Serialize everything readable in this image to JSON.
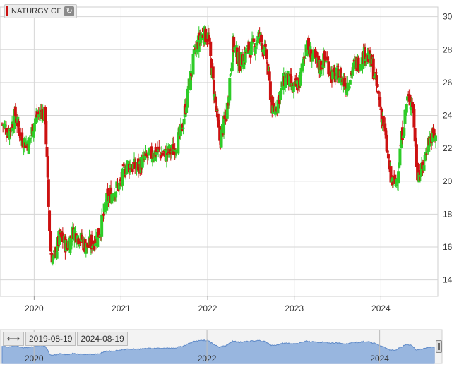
{
  "legend": {
    "label": "NATURGY GF",
    "color": "#cc1111"
  },
  "range_selector": {
    "from": "2019-08-19",
    "to": "2024-08-19"
  },
  "colors": {
    "up": "#2ecc28",
    "down": "#cc1111",
    "grid": "#d6d6d6",
    "navigator_fill": "#8fb0dd",
    "navigator_line": "#4f7fc4"
  },
  "chart_data": {
    "type": "candlestick",
    "title": "",
    "xlabel": "",
    "ylabel": "",
    "x_range": [
      "2019-08-19",
      "2024-08-19"
    ],
    "ylim": [
      13,
      30.5
    ],
    "y_ticks": [
      14,
      16,
      18,
      20,
      22,
      24,
      26,
      28,
      30
    ],
    "x_ticks": [
      "2020",
      "2021",
      "2022",
      "2023",
      "2024"
    ],
    "navigator_ticks": [
      "2020",
      "2022",
      "2024"
    ],
    "grid": true,
    "legend_position": "top-left",
    "weekly_closes": [
      {
        "d": "2019-08-19",
        "c": 23.5
      },
      {
        "d": "2019-09-16",
        "c": 23.0
      },
      {
        "d": "2019-10-14",
        "c": 24.0
      },
      {
        "d": "2019-11-11",
        "c": 22.5
      },
      {
        "d": "2019-12-09",
        "c": 22.3
      },
      {
        "d": "2020-01-06",
        "c": 23.8
      },
      {
        "d": "2020-02-03",
        "c": 24.3
      },
      {
        "d": "2020-02-17",
        "c": 23.8
      },
      {
        "d": "2020-03-09",
        "c": 15.8
      },
      {
        "d": "2020-03-23",
        "c": 15.2
      },
      {
        "d": "2020-04-20",
        "c": 16.7
      },
      {
        "d": "2020-05-18",
        "c": 16.0
      },
      {
        "d": "2020-06-15",
        "c": 17.0
      },
      {
        "d": "2020-07-13",
        "c": 16.5
      },
      {
        "d": "2020-08-10",
        "c": 16.0
      },
      {
        "d": "2020-09-07",
        "c": 16.3
      },
      {
        "d": "2020-10-05",
        "c": 17.0
      },
      {
        "d": "2020-11-02",
        "c": 18.8
      },
      {
        "d": "2020-11-30",
        "c": 19.4
      },
      {
        "d": "2020-12-28",
        "c": 19.8
      },
      {
        "d": "2021-01-25",
        "c": 21.0
      },
      {
        "d": "2021-03-08",
        "c": 20.8
      },
      {
        "d": "2021-04-19",
        "c": 21.4
      },
      {
        "d": "2021-05-31",
        "c": 21.8
      },
      {
        "d": "2021-07-05",
        "c": 21.6
      },
      {
        "d": "2021-08-09",
        "c": 21.9
      },
      {
        "d": "2021-09-13",
        "c": 23.0
      },
      {
        "d": "2021-10-11",
        "c": 25.5
      },
      {
        "d": "2021-11-08",
        "c": 27.8
      },
      {
        "d": "2021-12-06",
        "c": 29.0
      },
      {
        "d": "2022-01-03",
        "c": 28.8
      },
      {
        "d": "2022-01-24",
        "c": 26.0
      },
      {
        "d": "2022-02-21",
        "c": 22.5
      },
      {
        "d": "2022-03-21",
        "c": 24.0
      },
      {
        "d": "2022-04-18",
        "c": 28.3
      },
      {
        "d": "2022-05-16",
        "c": 27.2
      },
      {
        "d": "2022-06-13",
        "c": 27.8
      },
      {
        "d": "2022-07-11",
        "c": 28.2
      },
      {
        "d": "2022-08-08",
        "c": 28.8
      },
      {
        "d": "2022-09-05",
        "c": 27.5
      },
      {
        "d": "2022-10-03",
        "c": 24.1
      },
      {
        "d": "2022-10-31",
        "c": 25.2
      },
      {
        "d": "2022-11-28",
        "c": 26.5
      },
      {
        "d": "2022-12-26",
        "c": 25.5
      },
      {
        "d": "2023-01-23",
        "c": 26.0
      },
      {
        "d": "2023-02-20",
        "c": 28.3
      },
      {
        "d": "2023-03-20",
        "c": 27.5
      },
      {
        "d": "2023-04-17",
        "c": 27.0
      },
      {
        "d": "2023-05-15",
        "c": 27.5
      },
      {
        "d": "2023-06-12",
        "c": 26.3
      },
      {
        "d": "2023-07-10",
        "c": 26.5
      },
      {
        "d": "2023-08-07",
        "c": 25.8
      },
      {
        "d": "2023-09-04",
        "c": 26.8
      },
      {
        "d": "2023-10-02",
        "c": 27.3
      },
      {
        "d": "2023-10-30",
        "c": 27.8
      },
      {
        "d": "2023-11-27",
        "c": 27.0
      },
      {
        "d": "2023-12-18",
        "c": 25.5
      },
      {
        "d": "2024-01-15",
        "c": 23.2
      },
      {
        "d": "2024-02-12",
        "c": 20.0
      },
      {
        "d": "2024-03-04",
        "c": 19.8
      },
      {
        "d": "2024-04-01",
        "c": 23.0
      },
      {
        "d": "2024-04-22",
        "c": 25.0
      },
      {
        "d": "2024-05-13",
        "c": 24.8
      },
      {
        "d": "2024-06-03",
        "c": 20.5
      },
      {
        "d": "2024-06-24",
        "c": 20.6
      },
      {
        "d": "2024-07-15",
        "c": 22.3
      },
      {
        "d": "2024-08-05",
        "c": 22.8
      },
      {
        "d": "2024-08-19",
        "c": 22.5
      }
    ]
  }
}
